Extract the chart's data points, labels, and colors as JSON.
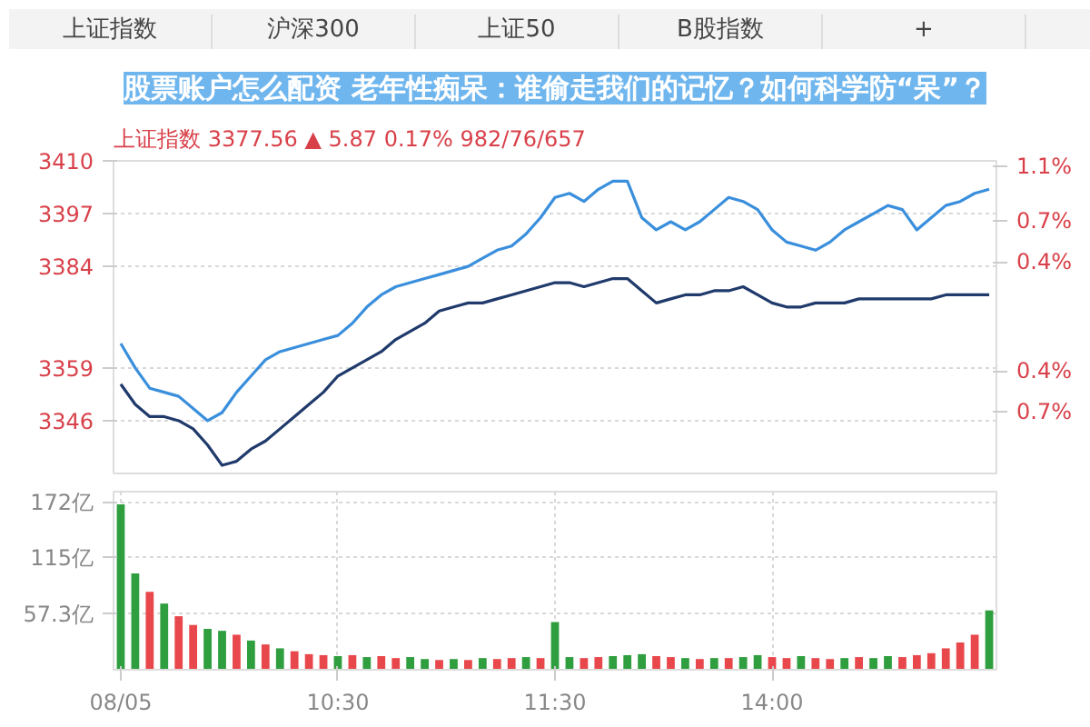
{
  "chart_data": [
    {
      "type": "line",
      "title": "股票账户怎么配资 老年性痴呆：谁偷走我们的记忆？如何科学防“呆”？",
      "subtitle": "上证指数   3377.56   ▲ 5.87   0.17%   982/76/657",
      "annotations": [
        "上证指数",
        "沪深300",
        "上证50",
        "B股指数",
        "+"
      ],
      "categories": [
        null,
        null,
        null,
        null,
        null,
        null,
        null,
        null,
        null,
        null,
        null,
        null,
        null,
        null,
        null,
        null,
        null,
        null,
        null,
        null,
        null,
        null,
        null,
        null,
        null,
        null,
        null,
        null,
        null,
        null,
        null,
        null,
        null,
        null,
        null,
        null,
        null,
        null,
        null,
        null,
        null,
        null,
        null,
        null,
        null,
        null,
        null,
        null,
        null,
        null,
        null,
        null,
        null,
        null,
        null,
        null,
        null,
        null,
        null,
        null,
        null
      ],
      "ylim": [
        3333,
        3410
      ],
      "yticks": [
        3346,
        3359,
        3384,
        3397,
        3410
      ],
      "y2lim": [
        -1.15,
        1.14
      ],
      "y2ticks": [
        {
          "value": -0.7,
          "label": "0.7%"
        },
        {
          "value": -0.4,
          "label": "0.4%"
        },
        {
          "value": 0.4,
          "label": "0.4%"
        },
        {
          "value": 0.7,
          "label": "0.7%"
        },
        {
          "value": 1.1,
          "label": "1.1%"
        }
      ],
      "tick_labels": "y",
      "grid": "y",
      "marker": "none",
      "line_style": "solid",
      "series": [
        {
          "color": "#3a8fdc",
          "values": [
            3365,
            3359,
            3354,
            3353,
            3352,
            3349,
            3346,
            3348,
            3353,
            3357,
            3361,
            3363,
            3364,
            3365,
            3366,
            3367,
            3370,
            3374,
            3377,
            3379,
            3380,
            3381,
            3382,
            3383,
            3384,
            3386,
            3388,
            3389,
            3392,
            3396,
            3401,
            3402,
            3400,
            3403,
            3405,
            3405,
            3396,
            3393,
            3395,
            3393,
            3395,
            3398,
            3401,
            3400,
            3398,
            3393,
            3390,
            3389,
            3388,
            3390,
            3393,
            3395,
            3397,
            3399,
            3398,
            3393,
            3396,
            3399,
            3400,
            3402,
            3403
          ]
        },
        {
          "color": "#1f3a6b",
          "values": [
            3355,
            3350,
            3347,
            3347,
            3346,
            3344,
            3340,
            3335,
            3336,
            3339,
            3341,
            3344,
            3347,
            3350,
            3353,
            3357,
            3359,
            3361,
            3363,
            3366,
            3368,
            3370,
            3373,
            3374,
            3375,
            3375,
            3376,
            3377,
            3378,
            3379,
            3380,
            3380,
            3379,
            3380,
            3381,
            3381,
            3378,
            3375,
            3376,
            3377,
            3377,
            3378,
            3378,
            3379,
            3377,
            3375,
            3374,
            3374,
            3375,
            3375,
            3375,
            3376,
            3376,
            3376,
            3376,
            3376,
            3376,
            3377,
            3377,
            3377,
            3377
          ]
        }
      ]
    },
    {
      "type": "bar",
      "categories": [
        "08/05",
        null,
        null,
        null,
        null,
        null,
        null,
        null,
        null,
        null,
        null,
        null,
        null,
        null,
        null,
        "10:30",
        null,
        null,
        null,
        null,
        null,
        null,
        null,
        null,
        null,
        null,
        null,
        null,
        null,
        null,
        "11:30",
        null,
        null,
        null,
        null,
        null,
        null,
        null,
        null,
        null,
        null,
        null,
        null,
        null,
        null,
        "14:00",
        null,
        null,
        null,
        null,
        null,
        null,
        null,
        null,
        null,
        null,
        null,
        null,
        null,
        null,
        null
      ],
      "values": [
        170,
        99,
        80,
        68,
        55,
        46,
        42,
        40,
        36,
        30,
        26,
        22,
        19,
        16,
        15,
        14,
        15,
        13,
        14,
        12,
        13,
        11,
        10,
        11,
        10,
        12,
        11,
        12,
        13,
        12,
        49,
        13,
        12,
        13,
        14,
        15,
        16,
        14,
        13,
        12,
        11,
        12,
        12,
        13,
        15,
        13,
        12,
        14,
        12,
        11,
        12,
        13,
        12,
        14,
        13,
        15,
        17,
        22,
        28,
        36,
        61
      ],
      "colors": [
        "#2e9e3e",
        "#2e9e3e",
        "#e8474b",
        "#2e9e3e",
        "#e8474b",
        "#e8474b",
        "#2e9e3e",
        "#2e9e3e",
        "#e8474b",
        "#2e9e3e",
        "#e8474b",
        "#2e9e3e",
        "#e8474b",
        "#e8474b",
        "#e8474b",
        "#2e9e3e",
        "#e8474b",
        "#2e9e3e",
        "#e8474b",
        "#e8474b",
        "#2e9e3e",
        "#2e9e3e",
        "#e8474b",
        "#2e9e3e",
        "#e8474b",
        "#2e9e3e",
        "#e8474b",
        "#e8474b",
        "#2e9e3e",
        "#e8474b",
        "#2e9e3e",
        "#2e9e3e",
        "#e8474b",
        "#e8474b",
        "#2e9e3e",
        "#2e9e3e",
        "#2e9e3e",
        "#e8474b",
        "#e8474b",
        "#2e9e3e",
        "#e8474b",
        "#2e9e3e",
        "#e8474b",
        "#2e9e3e",
        "#2e9e3e",
        "#e8474b",
        "#e8474b",
        "#2e9e3e",
        "#e8474b",
        "#e8474b",
        "#2e9e3e",
        "#e8474b",
        "#2e9e3e",
        "#2e9e3e",
        "#e8474b",
        "#e8474b",
        "#e8474b",
        "#e8474b",
        "#e8474b",
        "#e8474b",
        "#2e9e3e"
      ],
      "ylim": [
        0,
        183
      ],
      "yticks": [
        {
          "value": 57.3,
          "label": "57.3亿"
        },
        {
          "value": 115,
          "label": "115亿"
        },
        {
          "value": 172,
          "label": "172亿"
        }
      ],
      "grid": true
    }
  ]
}
